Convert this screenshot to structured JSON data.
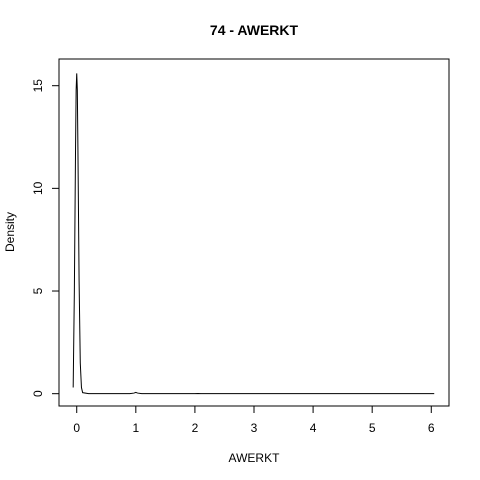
{
  "chart_data": {
    "type": "line",
    "title": "74 - AWERKT",
    "xlabel": "AWERKT",
    "ylabel": "Density",
    "xlim": [
      -0.3,
      6.3
    ],
    "ylim": [
      -0.6,
      16.3
    ],
    "x_ticks": [
      0,
      1,
      2,
      3,
      4,
      5,
      6
    ],
    "y_ticks": [
      0,
      5,
      10,
      15
    ],
    "grid": false,
    "line_color": "#000000",
    "series": [
      {
        "x": [
          -0.06,
          -0.04,
          -0.02,
          -0.01,
          0.0,
          0.01,
          0.02,
          0.04,
          0.06,
          0.08,
          0.1,
          0.2,
          0.5,
          0.9,
          0.97,
          1.0,
          1.03,
          1.1,
          1.5,
          2.0,
          2.05,
          2.1,
          3.0,
          4.0,
          5.0,
          6.05
        ],
        "y": [
          0.3,
          5.0,
          12.0,
          14.8,
          15.6,
          14.8,
          12.0,
          5.5,
          1.5,
          0.3,
          0.05,
          0.0,
          0.0,
          0.0,
          0.03,
          0.06,
          0.03,
          0.0,
          0.0,
          0.0,
          0.01,
          0.0,
          0.0,
          0.0,
          0.0,
          0.0
        ]
      }
    ]
  }
}
